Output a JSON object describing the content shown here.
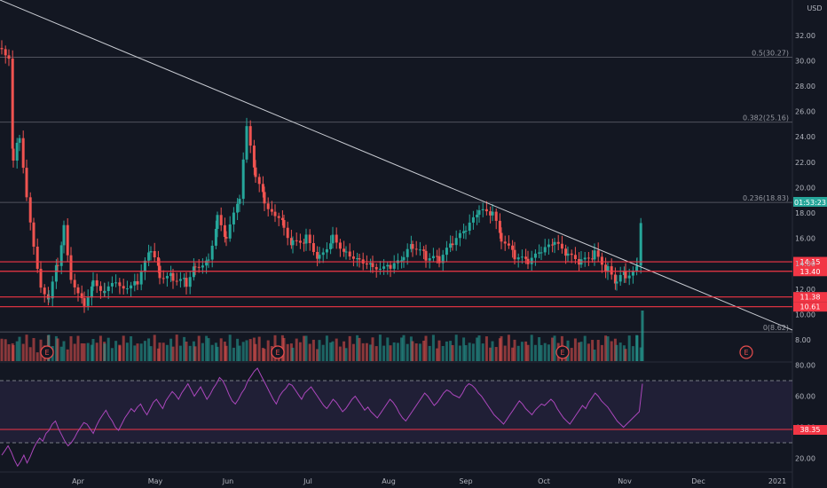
{
  "currency": "USD",
  "price_axis_labels": [
    "32.00",
    "30.00",
    "28.00",
    "26.00",
    "24.00",
    "22.00",
    "20.00",
    "18.00",
    "16.00",
    "14.00",
    "12.00",
    "10.00",
    "8.00"
  ],
  "current_price": {
    "value": 18.8,
    "countdown": "01:53:23"
  },
  "fib_levels": [
    {
      "label": "0.5(30.27)",
      "price": 30.27
    },
    {
      "label": "0.382(25.16)",
      "price": 25.16
    },
    {
      "label": "0.236(18.83)",
      "price": 18.83
    },
    {
      "label": "0(8.62)",
      "price": 8.62
    }
  ],
  "horizontal_levels": [
    {
      "label": "14.15",
      "price": 14.15
    },
    {
      "label": "13.40",
      "price": 13.4
    },
    {
      "label": "11.38",
      "price": 11.38
    },
    {
      "label": "10.61",
      "price": 10.61
    }
  ],
  "time_axis_labels": [
    "Apr",
    "May",
    "Jun",
    "Jul",
    "Aug",
    "Sep",
    "Oct",
    "Nov",
    "Dec",
    "2021"
  ],
  "earnings_marker": "E",
  "rsi": {
    "axis_labels": [
      "80.00",
      "60.00",
      "40.00",
      "20.00"
    ],
    "upper_band": 70,
    "lower_band": 30,
    "level_label": "38.35",
    "level": 38.35,
    "values": [
      22,
      25,
      28,
      24,
      19,
      15,
      18,
      22,
      17,
      21,
      26,
      30,
      33,
      31,
      36,
      38,
      42,
      44,
      39,
      35,
      31,
      28,
      30,
      33,
      37,
      40,
      43,
      42,
      39,
      36,
      41,
      45,
      48,
      51,
      47,
      44,
      40,
      38,
      42,
      46,
      49,
      52,
      50,
      53,
      55,
      51,
      48,
      52,
      56,
      58,
      55,
      52,
      57,
      60,
      63,
      61,
      58,
      62,
      65,
      68,
      64,
      60,
      63,
      66,
      62,
      58,
      61,
      65,
      68,
      72,
      70,
      66,
      61,
      57,
      55,
      58,
      62,
      65,
      70,
      73,
      76,
      78,
      74,
      70,
      66,
      62,
      58,
      55,
      60,
      63,
      65,
      68,
      67,
      64,
      61,
      58,
      62,
      64,
      66,
      63,
      60,
      57,
      54,
      52,
      55,
      58,
      56,
      53,
      50,
      52,
      55,
      58,
      60,
      57,
      54,
      51,
      53,
      50,
      48,
      46,
      49,
      52,
      55,
      58,
      56,
      53,
      49,
      46,
      44,
      47,
      50,
      53,
      56,
      59,
      62,
      60,
      57,
      54,
      56,
      59,
      62,
      64,
      63,
      61,
      60,
      59,
      62,
      66,
      68,
      67,
      65,
      62,
      60,
      57,
      54,
      51,
      48,
      46,
      44,
      42,
      45,
      48,
      51,
      54,
      57,
      55,
      52,
      50,
      48,
      51,
      53,
      55,
      54,
      56,
      58,
      56,
      52,
      49,
      46,
      44,
      42,
      45,
      48,
      51,
      54,
      52,
      56,
      59,
      62,
      60,
      57,
      55,
      53,
      50,
      47,
      44,
      42,
      40,
      42,
      44,
      46,
      48,
      50,
      68
    ]
  }
}
